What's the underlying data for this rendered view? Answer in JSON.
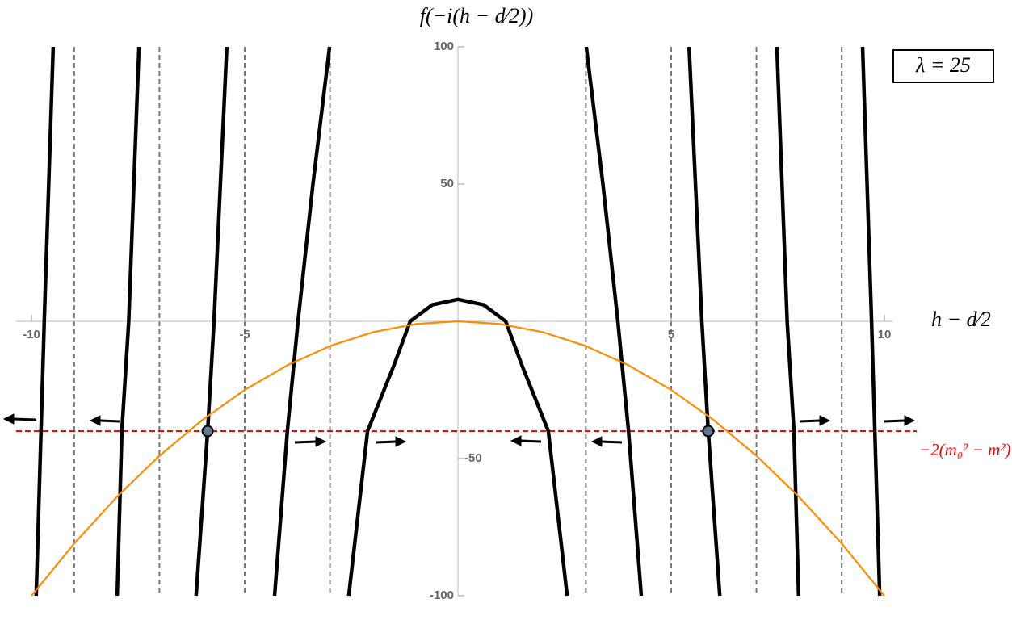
{
  "chart_data": {
    "type": "line",
    "title": "f(−i(h − d⁄2))",
    "x_label": "h − d⁄2",
    "annotation": "λ = 25",
    "xlim": [
      -10.36,
      10.19
    ],
    "ylim": [
      -100,
      100
    ],
    "xticks": [
      -10,
      -5,
      5,
      10
    ],
    "yticks": [
      -100,
      -50,
      50,
      100
    ],
    "series": [
      {
        "color": "#000000",
        "x": [
          -9.89,
          -9.7,
          -9.49,
          null,
          -7.99,
          -7.88,
          -7.72,
          -7.48,
          null,
          -6.14,
          -5.87,
          -5.72,
          -5.42,
          null,
          -4.3,
          -4.0,
          -3.75,
          -3.4,
          -3.01,
          null,
          -2.56,
          -2.12,
          -1.5,
          -1.12,
          -0.6,
          0,
          0.6,
          1.12,
          1.5,
          2.12,
          2.56,
          null,
          3.01,
          3.4,
          3.75,
          4.0,
          4.3,
          null,
          5.42,
          5.72,
          5.87,
          6.14,
          null,
          7.48,
          7.72,
          7.88,
          7.99,
          null,
          9.49,
          9.7,
          9.89
        ],
        "values": [
          -100,
          0,
          100,
          null,
          -100,
          -40,
          0,
          100,
          null,
          -100,
          -40,
          0,
          100,
          null,
          -100,
          -40,
          0,
          50,
          100,
          null,
          -100,
          -40,
          -16,
          0,
          6,
          8,
          6,
          0,
          -16,
          -40,
          -100,
          null,
          100,
          50,
          0,
          -40,
          -100,
          null,
          100,
          0,
          -40,
          -100,
          null,
          100,
          0,
          -40,
          -100,
          null,
          100,
          0,
          -100
        ]
      },
      {
        "color": "#ff8c00",
        "x": [
          -10,
          -9,
          -8,
          -7,
          -6,
          -5,
          -4,
          -3,
          -2,
          -1,
          0,
          1,
          2,
          3,
          4,
          5,
          6,
          7,
          8,
          9,
          10
        ],
        "values": [
          -100,
          -81,
          -64,
          -49,
          -36,
          -25,
          -16,
          -9,
          -4,
          -1,
          0,
          -1,
          -4,
          -9,
          -16,
          -25,
          -36,
          -49,
          -64,
          -81,
          -100
        ]
      }
    ],
    "vlines": [
      -9,
      -7,
      -5,
      -3,
      3,
      5,
      7,
      9
    ],
    "vline_color": "#777777",
    "reference_line": {
      "value": -40,
      "label": "−2(m₀² − m²)",
      "color": "#ff0000"
    },
    "points": {
      "x": [
        -5.87,
        5.87
      ],
      "values": [
        -40,
        -40
      ],
      "color": "#5f7890"
    }
  }
}
